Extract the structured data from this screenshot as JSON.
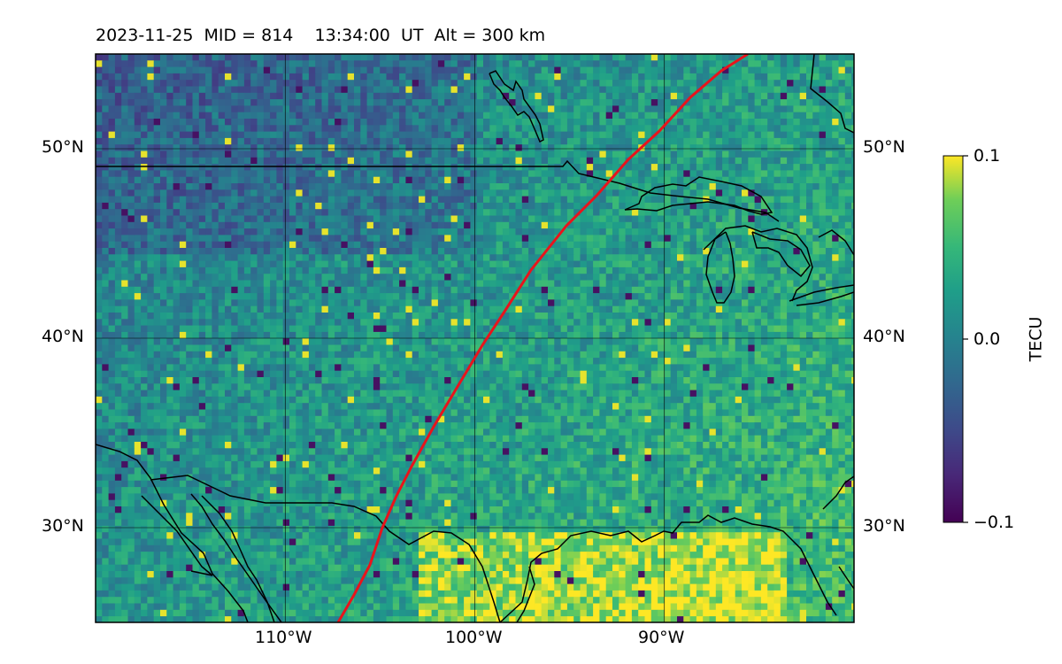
{
  "title": "2023-11-25  MID = 814    13:34:00  UT  Alt = 300 km",
  "map": {
    "lat_range": [
      25,
      55
    ],
    "lon_range": [
      -120,
      -80
    ],
    "lat_ticks": [
      {
        "value": 30,
        "label": "30°N"
      },
      {
        "value": 40,
        "label": "40°N"
      },
      {
        "value": 50,
        "label": "50°N"
      }
    ],
    "lon_ticks": [
      {
        "value": -110,
        "label": "110°W"
      },
      {
        "value": -100,
        "label": "100°W"
      },
      {
        "value": -90,
        "label": "90°W"
      }
    ],
    "grid": true,
    "projection": "equirectangular",
    "track_color": "#e8141c",
    "coast_color": "#000000"
  },
  "colorbar": {
    "label": "TECU",
    "min": -0.1,
    "max": 0.1,
    "ticks": [
      "0.1",
      "0.0",
      "−0.1"
    ],
    "colormap": "viridis"
  }
}
